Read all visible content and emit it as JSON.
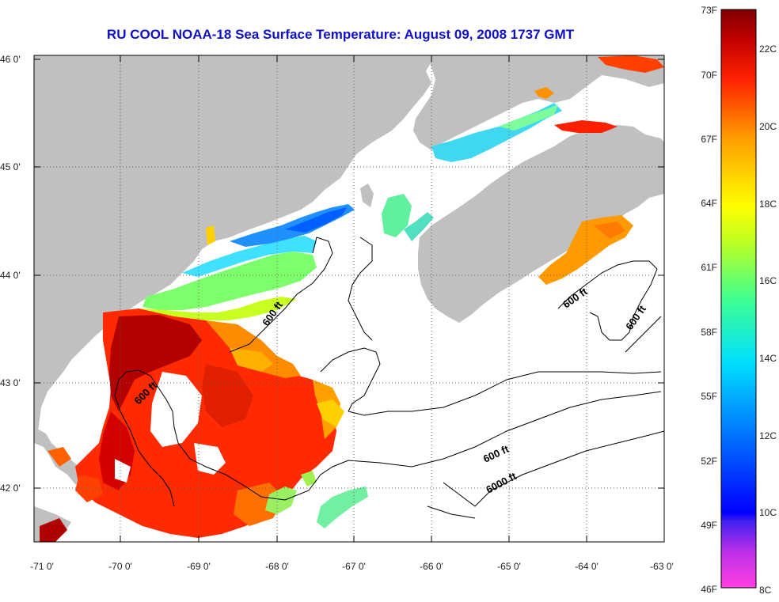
{
  "title": "RU COOL  NOAA-18  Sea Surface Temperature:  August 09, 2008 1737 GMT",
  "lat_labels": [
    "46 0'",
    "45 0'",
    "44 0'",
    "43 0'",
    "42 0'"
  ],
  "lon_labels": [
    "-71 0'",
    "-70 0'",
    "-69 0'",
    "-68 0'",
    "-67 0'",
    "-66 0'",
    "-65 0'",
    "-64 0'",
    "-63 0'"
  ],
  "contour_labels": [
    "600 ft",
    "600 ft",
    "600 ft",
    "600 ft",
    "600 ft",
    "6000 ft"
  ],
  "colorbar": {
    "fahrenheit": [
      "73F",
      "70F",
      "67F",
      "64F",
      "61F",
      "58F",
      "55F",
      "52F",
      "49F",
      "46F"
    ],
    "celsius": [
      "22C",
      "20C",
      "18C",
      "16C",
      "14C",
      "12C",
      "10C",
      "8C"
    ],
    "colors": [
      "#ff40e0",
      "#8030e0",
      "#0000ff",
      "#0070ff",
      "#00d8ff",
      "#60ff90",
      "#ffff00",
      "#ff9000",
      "#ff1000",
      "#800000"
    ]
  },
  "colors": {
    "land": "#c0c0c0",
    "title": "#1010c8",
    "ocean_no_data": "#ffffff"
  }
}
